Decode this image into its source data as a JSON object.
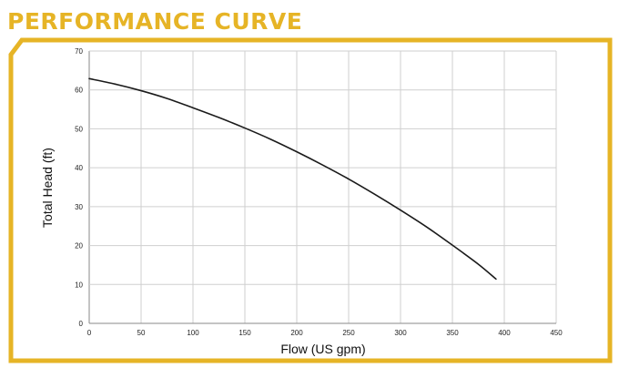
{
  "header": {
    "title": "PERFORMANCE CURVE"
  },
  "colors": {
    "accent": "#e6b426",
    "curve": "#1a1a1a",
    "grid": "#cfcfcf",
    "axis": "#8a8a8a"
  },
  "chart_data": {
    "type": "line",
    "xlabel": "Flow (US gpm)",
    "ylabel": "Total Head (ft)",
    "xlim": [
      0,
      450
    ],
    "ylim": [
      0,
      70
    ],
    "xticks": [
      0,
      50,
      100,
      150,
      200,
      250,
      300,
      350,
      400,
      450
    ],
    "yticks": [
      0,
      10,
      20,
      30,
      40,
      50,
      60,
      70
    ],
    "grid": true,
    "series": [
      {
        "x": [
          0,
          25,
          50,
          75,
          100,
          125,
          150,
          175,
          200,
          225,
          250,
          275,
          300,
          325,
          350,
          375,
          392
        ],
        "y": [
          62.9,
          61.5,
          59.8,
          57.8,
          55.4,
          52.9,
          50.2,
          47.3,
          44.1,
          40.7,
          37.1,
          33.2,
          29.1,
          24.8,
          20.1,
          15.2,
          11.4
        ]
      }
    ]
  }
}
